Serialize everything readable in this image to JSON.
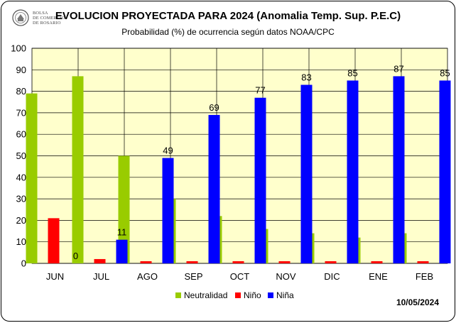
{
  "header": {
    "logo_text": [
      "BOLSA",
      "DE COMERCIO",
      "DE ROSARIO"
    ],
    "title": "EVOLUCION PROYECTADA PARA 2024 (Anomalia Temp. Sup. P.E.C)",
    "subtitle": "Probabilidad (%) de ocurrencia según datos NOAA/CPC"
  },
  "footer": {
    "date": "10/05/2024"
  },
  "colors": {
    "plot_bg": "#FFFFCC",
    "grid": "#000000",
    "Neutralidad": "#99CC00",
    "Niño": "#FF0000",
    "Niña": "#0000FF"
  },
  "chart_data": {
    "type": "bar",
    "title": "EVOLUCION PROYECTADA PARA 2024 (Anomalia Temp. Sup. P.E.C)",
    "subtitle": "Probabilidad (%) de ocurrencia según datos NOAA/CPC",
    "categories": [
      "JUN",
      "JUL",
      "AGO",
      "SEP",
      "OCT",
      "NOV",
      "DIC",
      "ENE",
      "FEB"
    ],
    "series": [
      {
        "name": "Neutralidad",
        "values": [
          79,
          87,
          50,
          30,
          22,
          16,
          14,
          12,
          14
        ]
      },
      {
        "name": "Niño",
        "values": [
          21,
          2,
          1,
          1,
          1,
          1,
          1,
          1,
          1
        ]
      },
      {
        "name": "Niña",
        "values": [
          0,
          11,
          49,
          69,
          77,
          83,
          85,
          87,
          85
        ]
      }
    ],
    "data_labels": {
      "series": "Niña",
      "values": [
        "0",
        "11",
        "49",
        "69",
        "77",
        "83",
        "85",
        "87",
        "85"
      ]
    },
    "ylim": [
      0,
      100
    ],
    "yticks": [
      "0",
      "10",
      "20",
      "30",
      "40",
      "50",
      "60",
      "70",
      "80",
      "90",
      "100"
    ],
    "grid": true,
    "legend": "bottom"
  }
}
